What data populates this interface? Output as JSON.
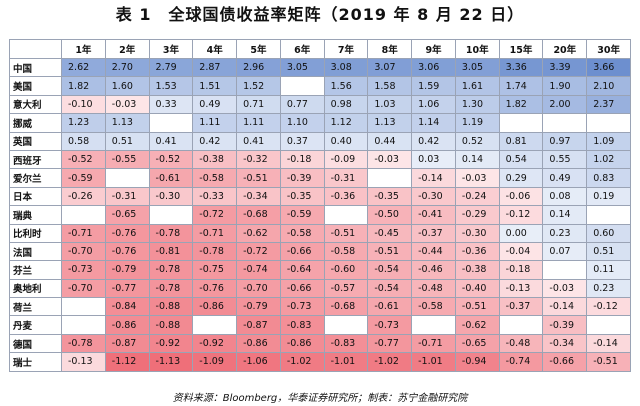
{
  "title": "表 1　全球国债收益率矩阵（2019 年 8 月 22 日）",
  "source_note": "资料来源：Bloomberg，华泰证券研究所；制表：苏宁金融研究院",
  "colors": {
    "positive_high": "#6d8fcf",
    "positive_low": "#e8eef8",
    "negative_low": "#fde8ea",
    "negative_high": "#ef6f79",
    "border": "#9aa3b5"
  },
  "table": {
    "columns": [
      "",
      "1年",
      "2年",
      "3年",
      "4年",
      "5年",
      "6年",
      "7年",
      "8年",
      "9年",
      "10年",
      "15年",
      "20年",
      "30年"
    ],
    "rows": [
      {
        "country": "中国",
        "values": [
          "2.62",
          "2.70",
          "2.79",
          "2.87",
          "2.96",
          "3.05",
          "3.08",
          "3.07",
          "3.06",
          "3.05",
          "3.36",
          "3.39",
          "3.66"
        ]
      },
      {
        "country": "美国",
        "values": [
          "1.82",
          "1.60",
          "1.53",
          "1.51",
          "1.52",
          "",
          "1.56",
          "1.58",
          "1.59",
          "1.61",
          "1.74",
          "1.90",
          "2.10"
        ]
      },
      {
        "country": "意大利",
        "values": [
          "-0.10",
          "-0.03",
          "0.33",
          "0.49",
          "0.71",
          "0.77",
          "0.98",
          "1.03",
          "1.06",
          "1.30",
          "1.82",
          "2.00",
          "2.37"
        ]
      },
      {
        "country": "挪威",
        "values": [
          "1.23",
          "1.13",
          "",
          "1.11",
          "1.11",
          "1.10",
          "1.12",
          "1.13",
          "1.14",
          "1.19",
          "",
          "",
          ""
        ]
      },
      {
        "country": "英国",
        "values": [
          "0.58",
          "0.51",
          "0.41",
          "0.42",
          "0.41",
          "0.37",
          "0.40",
          "0.44",
          "0.42",
          "0.52",
          "0.81",
          "0.97",
          "1.09"
        ]
      },
      {
        "country": "西班牙",
        "values": [
          "-0.52",
          "-0.55",
          "-0.52",
          "-0.38",
          "-0.32",
          "-0.18",
          "-0.09",
          "-0.03",
          "0.03",
          "0.14",
          "0.54",
          "0.55",
          "1.02"
        ]
      },
      {
        "country": "爱尔兰",
        "values": [
          "-0.59",
          "",
          "-0.61",
          "-0.58",
          "-0.51",
          "-0.39",
          "-0.31",
          "",
          "-0.14",
          "-0.03",
          "0.29",
          "0.49",
          "0.83"
        ]
      },
      {
        "country": "日本",
        "values": [
          "-0.26",
          "-0.31",
          "-0.30",
          "-0.33",
          "-0.34",
          "-0.35",
          "-0.36",
          "-0.35",
          "-0.30",
          "-0.24",
          "-0.06",
          "0.08",
          "0.19"
        ]
      },
      {
        "country": "瑞典",
        "values": [
          "",
          "-0.65",
          "",
          "-0.72",
          "-0.68",
          "-0.59",
          "",
          "-0.50",
          "-0.41",
          "-0.29",
          "-0.12",
          "0.14",
          ""
        ]
      },
      {
        "country": "比利时",
        "values": [
          "-0.71",
          "-0.76",
          "-0.78",
          "-0.71",
          "-0.62",
          "-0.58",
          "-0.51",
          "-0.45",
          "-0.37",
          "-0.30",
          "0.00",
          "0.23",
          "0.60"
        ]
      },
      {
        "country": "法国",
        "values": [
          "-0.70",
          "-0.76",
          "-0.81",
          "-0.78",
          "-0.72",
          "-0.66",
          "-0.58",
          "-0.51",
          "-0.44",
          "-0.36",
          "-0.04",
          "0.07",
          "0.51"
        ]
      },
      {
        "country": "芬兰",
        "values": [
          "-0.73",
          "-0.79",
          "-0.78",
          "-0.75",
          "-0.74",
          "-0.64",
          "-0.60",
          "-0.54",
          "-0.46",
          "-0.38",
          "-0.18",
          "",
          "0.11"
        ]
      },
      {
        "country": "奥地利",
        "values": [
          "-0.70",
          "-0.77",
          "-0.78",
          "-0.76",
          "-0.70",
          "-0.66",
          "-0.57",
          "-0.54",
          "-0.48",
          "-0.40",
          "-0.13",
          "-0.03",
          "0.23"
        ]
      },
      {
        "country": "荷兰",
        "values": [
          "",
          "-0.84",
          "-0.88",
          "-0.86",
          "-0.79",
          "-0.73",
          "-0.68",
          "-0.61",
          "-0.58",
          "-0.51",
          "-0.37",
          "-0.14",
          "-0.12"
        ]
      },
      {
        "country": "丹麦",
        "values": [
          "",
          "-0.86",
          "-0.88",
          "",
          "-0.87",
          "-0.83",
          "",
          "-0.73",
          "",
          "-0.62",
          "",
          "-0.39",
          ""
        ]
      },
      {
        "country": "德国",
        "values": [
          "-0.78",
          "-0.87",
          "-0.92",
          "-0.92",
          "-0.86",
          "-0.86",
          "-0.83",
          "-0.77",
          "-0.71",
          "-0.65",
          "-0.48",
          "-0.34",
          "-0.14"
        ]
      },
      {
        "country": "瑞士",
        "values": [
          "-0.13",
          "-1.12",
          "-1.13",
          "-1.09",
          "-1.06",
          "-1.02",
          "-1.01",
          "-1.02",
          "-1.01",
          "-0.94",
          "-0.74",
          "-0.66",
          "-0.51"
        ]
      }
    ]
  }
}
